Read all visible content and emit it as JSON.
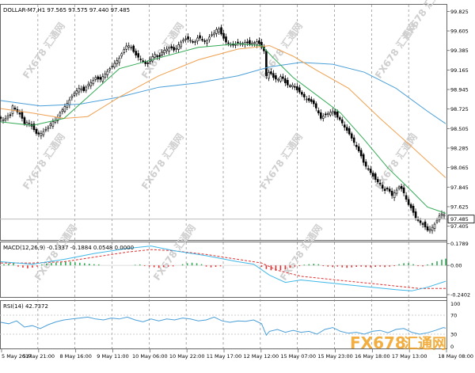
{
  "header": {
    "symbol_info": "DOLLAR-M7,H1  97.565 97.575 97.440 97.485",
    "macd_label": "MACD(12,26,9) -0.1337 -0.1884 0.0548 0.0000",
    "rsi_label": "RSI(14) 42.7372"
  },
  "watermark": {
    "text": "FX678 汇通网",
    "brand_en": "FX678",
    "brand_cn": "汇通网"
  },
  "colors": {
    "candle_up": "#ffffff",
    "candle_down": "#000000",
    "ma_fast": "#33aa55",
    "ma_mid": "#f0a050",
    "ma_slow": "#4a9fd8",
    "macd_signal": "#e03030",
    "macd_hist_pos": "#33aa55",
    "macd_hist_neg": "#e03030",
    "macd_line": "#3fb8e8",
    "rsi_line": "#4a9fd8",
    "price_box": "#ffffff"
  },
  "chart_data": [
    {
      "type": "candlestick",
      "panel": "price",
      "symbol": "DOLLAR-M7",
      "timeframe": "H1",
      "last_price": 97.485,
      "ylim": [
        97.25,
        99.9
      ],
      "y_ticks": [
        "99.825",
        "99.605",
        "99.385",
        "99.165",
        "98.945",
        "98.725",
        "98.505",
        "98.285",
        "98.065",
        "97.845",
        "97.625",
        "97.485",
        "97.405"
      ],
      "x_ticks": [
        "5 May 2017",
        "5 May 21:00",
        "8 May 16:00",
        "9 May 11:00",
        "10 May 06:00",
        "10 May 22:00",
        "11 May 17:00",
        "12 May 12:00",
        "15 May 07:00",
        "15 May 23:00",
        "16 May 18:00",
        "17 May 13:00",
        "18 May 08:00"
      ],
      "close_path": [
        [
          0,
          98.62
        ],
        [
          4,
          98.6
        ],
        [
          8,
          98.64
        ],
        [
          12,
          98.66
        ],
        [
          15,
          98.76
        ],
        [
          20,
          98.7
        ],
        [
          25,
          98.66
        ],
        [
          30,
          98.56
        ],
        [
          35,
          98.58
        ],
        [
          40,
          98.52
        ],
        [
          45,
          98.45
        ],
        [
          50,
          98.44
        ],
        [
          55,
          98.48
        ],
        [
          60,
          98.52
        ],
        [
          65,
          98.58
        ],
        [
          70,
          98.6
        ],
        [
          75,
          98.68
        ],
        [
          80,
          98.74
        ],
        [
          85,
          98.8
        ],
        [
          90,
          98.87
        ],
        [
          95,
          98.92
        ],
        [
          100,
          98.97
        ],
        [
          105,
          98.93
        ],
        [
          110,
          99.0
        ],
        [
          115,
          99.03
        ],
        [
          120,
          99.08
        ],
        [
          125,
          99.05
        ],
        [
          130,
          99.1
        ],
        [
          135,
          99.15
        ],
        [
          140,
          99.2
        ],
        [
          145,
          99.25
        ],
        [
          150,
          99.3
        ],
        [
          155,
          99.38
        ],
        [
          160,
          99.45
        ],
        [
          165,
          99.42
        ],
        [
          170,
          99.34
        ],
        [
          175,
          99.3
        ],
        [
          180,
          99.26
        ],
        [
          185,
          99.22
        ],
        [
          190,
          99.3
        ],
        [
          195,
          99.34
        ],
        [
          200,
          99.3
        ],
        [
          205,
          99.38
        ],
        [
          210,
          99.4
        ],
        [
          215,
          99.42
        ],
        [
          220,
          99.38
        ],
        [
          225,
          99.45
        ],
        [
          230,
          99.5
        ],
        [
          235,
          99.52
        ],
        [
          240,
          99.5
        ],
        [
          245,
          99.47
        ],
        [
          250,
          99.54
        ],
        [
          255,
          99.5
        ],
        [
          260,
          99.48
        ],
        [
          265,
          99.55
        ],
        [
          270,
          99.58
        ],
        [
          275,
          99.65
        ],
        [
          280,
          99.55
        ],
        [
          285,
          99.48
        ],
        [
          290,
          99.46
        ],
        [
          295,
          99.44
        ],
        [
          300,
          99.47
        ],
        [
          305,
          99.46
        ],
        [
          310,
          99.48
        ],
        [
          315,
          99.46
        ],
        [
          320,
          99.47
        ],
        [
          325,
          99.49
        ],
        [
          330,
          99.42
        ],
        [
          333,
          99.38
        ],
        [
          336,
          99.1
        ],
        [
          340,
          99.15
        ],
        [
          345,
          99.08
        ],
        [
          350,
          99.05
        ],
        [
          355,
          99.1
        ],
        [
          360,
          99.02
        ],
        [
          365,
          98.98
        ],
        [
          370,
          99.0
        ],
        [
          375,
          98.94
        ],
        [
          380,
          98.9
        ],
        [
          385,
          98.85
        ],
        [
          390,
          98.82
        ],
        [
          395,
          98.8
        ],
        [
          400,
          98.72
        ],
        [
          405,
          98.62
        ],
        [
          410,
          98.66
        ],
        [
          415,
          98.68
        ],
        [
          420,
          98.7
        ],
        [
          425,
          98.64
        ],
        [
          430,
          98.6
        ],
        [
          435,
          98.52
        ],
        [
          440,
          98.46
        ],
        [
          445,
          98.38
        ],
        [
          450,
          98.3
        ],
        [
          455,
          98.22
        ],
        [
          460,
          98.1
        ],
        [
          465,
          98.05
        ],
        [
          470,
          97.98
        ],
        [
          475,
          97.92
        ],
        [
          480,
          97.88
        ],
        [
          485,
          97.8
        ],
        [
          490,
          97.83
        ],
        [
          495,
          97.75
        ],
        [
          500,
          97.8
        ],
        [
          505,
          97.86
        ],
        [
          510,
          97.78
        ],
        [
          515,
          97.66
        ],
        [
          520,
          97.6
        ],
        [
          525,
          97.5
        ],
        [
          530,
          97.45
        ],
        [
          535,
          97.42
        ],
        [
          540,
          97.36
        ],
        [
          545,
          97.38
        ],
        [
          550,
          97.44
        ],
        [
          555,
          97.52
        ],
        [
          560,
          97.56
        ],
        [
          563,
          97.485
        ]
      ],
      "ma_fast_path": [
        [
          0,
          98.58
        ],
        [
          40,
          98.54
        ],
        [
          80,
          98.62
        ],
        [
          110,
          98.86
        ],
        [
          150,
          99.18
        ],
        [
          200,
          99.3
        ],
        [
          250,
          99.42
        ],
        [
          300,
          99.46
        ],
        [
          330,
          99.44
        ],
        [
          345,
          99.3
        ],
        [
          370,
          99.08
        ],
        [
          400,
          98.88
        ],
        [
          430,
          98.68
        ],
        [
          460,
          98.38
        ],
        [
          490,
          98.06
        ],
        [
          520,
          97.8
        ],
        [
          540,
          97.62
        ],
        [
          563,
          97.55
        ]
      ],
      "ma_mid_path": [
        [
          0,
          98.73
        ],
        [
          40,
          98.68
        ],
        [
          80,
          98.62
        ],
        [
          110,
          98.64
        ],
        [
          150,
          98.86
        ],
        [
          200,
          99.1
        ],
        [
          250,
          99.28
        ],
        [
          300,
          99.4
        ],
        [
          340,
          99.44
        ],
        [
          370,
          99.32
        ],
        [
          400,
          99.16
        ],
        [
          440,
          98.96
        ],
        [
          480,
          98.62
        ],
        [
          520,
          98.3
        ],
        [
          563,
          97.95
        ]
      ],
      "ma_slow_path": [
        [
          0,
          98.82
        ],
        [
          50,
          98.76
        ],
        [
          100,
          98.78
        ],
        [
          150,
          98.86
        ],
        [
          200,
          98.97
        ],
        [
          250,
          99.02
        ],
        [
          300,
          99.1
        ],
        [
          340,
          99.2
        ],
        [
          380,
          99.25
        ],
        [
          420,
          99.23
        ],
        [
          460,
          99.14
        ],
        [
          500,
          98.96
        ],
        [
          540,
          98.7
        ],
        [
          563,
          98.56
        ]
      ]
    },
    {
      "type": "macd",
      "panel": "macd",
      "params": "12,26,9",
      "values": {
        "main": -0.1337,
        "signal": -0.1884,
        "histogram": 0.0548
      },
      "ylim": [
        -0.26,
        0.19
      ],
      "y_ticks": [
        "0.1789",
        "0.00",
        "-0.2402"
      ],
      "macd_path": [
        [
          0,
          0.03
        ],
        [
          40,
          0.01
        ],
        [
          80,
          0.05
        ],
        [
          120,
          0.1
        ],
        [
          160,
          0.14
        ],
        [
          190,
          0.16
        ],
        [
          220,
          0.12
        ],
        [
          260,
          0.08
        ],
        [
          300,
          0.03
        ],
        [
          320,
          0.01
        ],
        [
          340,
          -0.08
        ],
        [
          360,
          -0.14
        ],
        [
          380,
          -0.12
        ],
        [
          410,
          -0.14
        ],
        [
          440,
          -0.16
        ],
        [
          470,
          -0.18
        ],
        [
          500,
          -0.2
        ],
        [
          520,
          -0.21
        ],
        [
          540,
          -0.18
        ],
        [
          563,
          -0.13
        ]
      ],
      "signal_path": [
        [
          0,
          0.02
        ],
        [
          40,
          0.02
        ],
        [
          80,
          0.03
        ],
        [
          120,
          0.07
        ],
        [
          160,
          0.11
        ],
        [
          190,
          0.13
        ],
        [
          220,
          0.12
        ],
        [
          260,
          0.09
        ],
        [
          300,
          0.05
        ],
        [
          330,
          0.02
        ],
        [
          350,
          -0.04
        ],
        [
          380,
          -0.09
        ],
        [
          410,
          -0.11
        ],
        [
          440,
          -0.13
        ],
        [
          470,
          -0.15
        ],
        [
          500,
          -0.17
        ],
        [
          530,
          -0.19
        ],
        [
          563,
          -0.19
        ]
      ],
      "histogram": [
        [
          4,
          0.01
        ],
        [
          10,
          0.015
        ],
        [
          16,
          0.02
        ],
        [
          22,
          -0.01
        ],
        [
          28,
          -0.018
        ],
        [
          34,
          -0.024
        ],
        [
          40,
          -0.018
        ],
        [
          46,
          -0.01
        ],
        [
          52,
          0.008
        ],
        [
          58,
          0.015
        ],
        [
          64,
          0.02
        ],
        [
          70,
          0.024
        ],
        [
          76,
          0.028
        ],
        [
          82,
          0.034
        ],
        [
          88,
          0.03
        ],
        [
          94,
          0.026
        ],
        [
          100,
          0.022
        ],
        [
          106,
          0.018
        ],
        [
          112,
          0.014
        ],
        [
          118,
          0.01
        ],
        [
          124,
          0.008
        ],
        [
          170,
          0.005
        ],
        [
          176,
          0.008
        ],
        [
          182,
          -0.005
        ],
        [
          188,
          -0.01
        ],
        [
          194,
          -0.015
        ],
        [
          200,
          -0.02
        ],
        [
          206,
          -0.014
        ],
        [
          212,
          -0.01
        ],
        [
          218,
          -0.008
        ],
        [
          230,
          0.01
        ],
        [
          236,
          0.018
        ],
        [
          242,
          0.022
        ],
        [
          248,
          0.018
        ],
        [
          254,
          0.01
        ],
        [
          260,
          -0.01
        ],
        [
          266,
          -0.016
        ],
        [
          272,
          -0.012
        ],
        [
          278,
          -0.008
        ],
        [
          330,
          -0.012
        ],
        [
          336,
          -0.03
        ],
        [
          342,
          -0.04
        ],
        [
          348,
          -0.044
        ],
        [
          354,
          -0.04
        ],
        [
          360,
          -0.034
        ],
        [
          366,
          -0.02
        ],
        [
          372,
          -0.01
        ],
        [
          378,
          -0.006
        ],
        [
          384,
          0.006
        ],
        [
          390,
          0.01
        ],
        [
          396,
          0.014
        ],
        [
          402,
          0.01
        ],
        [
          408,
          -0.006
        ],
        [
          414,
          -0.01
        ],
        [
          420,
          -0.014
        ],
        [
          426,
          -0.01
        ],
        [
          432,
          -0.016
        ],
        [
          438,
          -0.02
        ],
        [
          444,
          -0.016
        ],
        [
          450,
          -0.012
        ],
        [
          456,
          -0.01
        ],
        [
          462,
          -0.014
        ],
        [
          468,
          -0.016
        ],
        [
          474,
          -0.012
        ],
        [
          480,
          -0.01
        ],
        [
          486,
          -0.014
        ],
        [
          492,
          -0.01
        ],
        [
          498,
          -0.006
        ],
        [
          504,
          0.01
        ],
        [
          510,
          0.018
        ],
        [
          516,
          0.02
        ],
        [
          522,
          0.01
        ],
        [
          528,
          -0.006
        ],
        [
          534,
          -0.008
        ],
        [
          540,
          0.008
        ],
        [
          546,
          0.02
        ],
        [
          552,
          0.034
        ],
        [
          558,
          0.048
        ],
        [
          563,
          0.055
        ]
      ]
    },
    {
      "type": "line",
      "panel": "rsi",
      "params": "14",
      "value": 42.7372,
      "ylim": [
        0,
        100
      ],
      "y_ticks": [
        "100",
        "70",
        "30",
        "0"
      ],
      "levels": [
        70,
        30
      ],
      "rsi_path": [
        [
          0,
          55
        ],
        [
          10,
          52
        ],
        [
          20,
          58
        ],
        [
          30,
          45
        ],
        [
          40,
          48
        ],
        [
          50,
          42
        ],
        [
          60,
          50
        ],
        [
          70,
          56
        ],
        [
          80,
          60
        ],
        [
          90,
          62
        ],
        [
          100,
          64
        ],
        [
          110,
          66
        ],
        [
          120,
          62
        ],
        [
          130,
          60
        ],
        [
          140,
          64
        ],
        [
          150,
          62
        ],
        [
          160,
          66
        ],
        [
          170,
          60
        ],
        [
          180,
          56
        ],
        [
          190,
          62
        ],
        [
          200,
          58
        ],
        [
          210,
          62
        ],
        [
          220,
          60
        ],
        [
          230,
          64
        ],
        [
          240,
          62
        ],
        [
          250,
          58
        ],
        [
          260,
          60
        ],
        [
          270,
          66
        ],
        [
          280,
          58
        ],
        [
          290,
          55
        ],
        [
          300,
          58
        ],
        [
          310,
          57
        ],
        [
          320,
          60
        ],
        [
          330,
          52
        ],
        [
          336,
          28
        ],
        [
          340,
          36
        ],
        [
          350,
          40
        ],
        [
          360,
          34
        ],
        [
          370,
          38
        ],
        [
          380,
          34
        ],
        [
          390,
          36
        ],
        [
          400,
          30
        ],
        [
          410,
          40
        ],
        [
          420,
          44
        ],
        [
          430,
          36
        ],
        [
          440,
          32
        ],
        [
          450,
          34
        ],
        [
          460,
          30
        ],
        [
          470,
          36
        ],
        [
          480,
          38
        ],
        [
          490,
          33
        ],
        [
          500,
          40
        ],
        [
          510,
          42
        ],
        [
          520,
          34
        ],
        [
          530,
          30
        ],
        [
          540,
          33
        ],
        [
          550,
          38
        ],
        [
          560,
          44
        ],
        [
          563,
          42.7
        ]
      ]
    }
  ]
}
